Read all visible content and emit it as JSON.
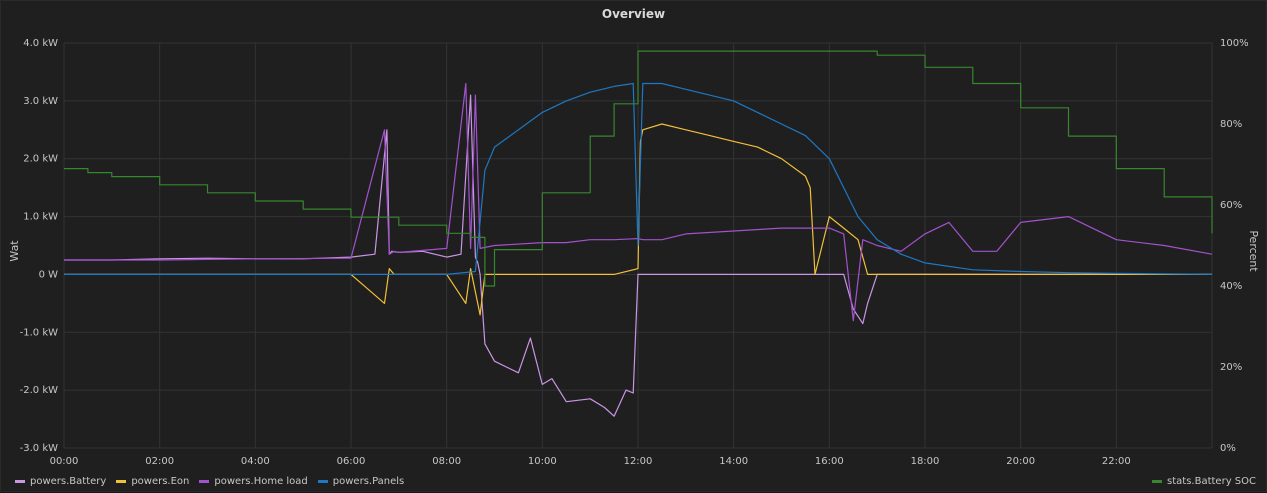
{
  "panel": {
    "title": "Overview"
  },
  "chart_data": {
    "type": "line",
    "title": "Overview",
    "ylabel_left": "Wat",
    "ylabel_right": "Percent",
    "xlim": [
      0,
      24
    ],
    "ylim_left": [
      -3.0,
      4.0
    ],
    "ylim_right": [
      0,
      100
    ],
    "x_ticks": [
      "00:00",
      "02:00",
      "04:00",
      "06:00",
      "08:00",
      "10:00",
      "12:00",
      "14:00",
      "16:00",
      "18:00",
      "20:00",
      "22:00"
    ],
    "y_ticks_left": [
      "4.0 kW",
      "3.0 kW",
      "2.0 kW",
      "1.0 kW",
      "0 W",
      "-1.0 kW",
      "-2.0 kW",
      "-3.0 kW"
    ],
    "y_ticks_right": [
      "100%",
      "80%",
      "60%",
      "40%",
      "20%",
      "0%"
    ],
    "grid": true,
    "series": [
      {
        "name": "powers.Battery",
        "axis": "left",
        "color": "#ca95e5",
        "x": [
          0,
          1,
          2,
          3,
          4,
          5,
          6,
          6.5,
          6.75,
          6.8,
          6.85,
          7,
          7.5,
          8,
          8.3,
          8.5,
          8.6,
          8.65,
          8.7,
          8.8,
          9,
          9.5,
          9.75,
          10,
          10.2,
          10.5,
          11,
          11.3,
          11.5,
          11.75,
          11.9,
          12,
          13,
          14,
          15,
          16,
          16.3,
          16.5,
          16.7,
          16.8,
          17,
          17.5,
          18,
          18.5,
          19,
          20,
          21,
          22,
          23,
          24
        ],
        "y": [
          0.25,
          0.25,
          0.27,
          0.28,
          0.27,
          0.27,
          0.3,
          0.35,
          2.5,
          0.35,
          0.4,
          0.38,
          0.4,
          0.3,
          0.35,
          3.1,
          0.3,
          0.2,
          0,
          -1.2,
          -1.5,
          -1.7,
          -1.1,
          -1.9,
          -1.8,
          -2.2,
          -2.15,
          -2.3,
          -2.45,
          -2.0,
          -2.05,
          0,
          0,
          0,
          0,
          0,
          0,
          -0.6,
          -0.85,
          -0.5,
          0,
          0,
          0,
          0,
          0,
          0,
          0,
          0,
          0,
          0
        ]
      },
      {
        "name": "powers.Eon",
        "axis": "left",
        "color": "#f2c037",
        "x": [
          0,
          2,
          4,
          6,
          6.7,
          6.8,
          6.9,
          7,
          8,
          8.4,
          8.5,
          8.7,
          8.8,
          9,
          10,
          11,
          11.5,
          12,
          12.05,
          12.1,
          12.5,
          13,
          13.5,
          14,
          14.5,
          15,
          15.5,
          15.6,
          15.7,
          16,
          16.3,
          16.6,
          16.8,
          17,
          18,
          20,
          22,
          24
        ],
        "y": [
          0,
          0,
          0,
          0,
          -0.5,
          0.1,
          0,
          0,
          0,
          -0.5,
          0.1,
          -0.7,
          0,
          0,
          0,
          0,
          0,
          0.1,
          2.3,
          2.5,
          2.6,
          2.5,
          2.4,
          2.3,
          2.2,
          2.0,
          1.7,
          1.5,
          0,
          1.0,
          0.8,
          0.6,
          0,
          0,
          0,
          0,
          0,
          0
        ]
      },
      {
        "name": "powers.Home load",
        "axis": "left",
        "color": "#a352cc",
        "x": [
          0,
          2,
          4,
          6,
          6.7,
          6.8,
          6.9,
          7,
          8,
          8.4,
          8.5,
          8.6,
          8.7,
          9,
          10,
          10.5,
          11,
          11.5,
          12,
          12.1,
          12.5,
          13,
          14,
          15,
          16,
          16.3,
          16.5,
          16.7,
          17,
          17.5,
          18,
          18.5,
          19,
          19.5,
          20,
          21,
          22,
          23,
          24
        ],
        "y": [
          0.25,
          0.25,
          0.27,
          0.28,
          2.5,
          0.35,
          0.4,
          0.38,
          0.45,
          3.3,
          0.45,
          3.1,
          0.45,
          0.5,
          0.55,
          0.55,
          0.6,
          0.6,
          0.62,
          0.6,
          0.6,
          0.7,
          0.75,
          0.8,
          0.8,
          0.7,
          -0.8,
          0.6,
          0.5,
          0.4,
          0.7,
          0.9,
          0.4,
          0.4,
          0.9,
          1.0,
          0.6,
          0.5,
          0.35
        ]
      },
      {
        "name": "powers.Panels",
        "axis": "left",
        "color": "#1f78c1",
        "x": [
          0,
          1,
          2,
          3,
          4,
          5,
          6,
          7,
          8,
          8.6,
          8.8,
          9,
          9.5,
          10,
          10.5,
          11,
          11.5,
          11.9,
          12,
          12.1,
          12.5,
          13,
          14,
          15,
          15.5,
          16,
          16.3,
          16.6,
          17,
          17.5,
          18,
          19,
          20,
          21,
          22,
          23,
          24
        ],
        "y": [
          0,
          0,
          0,
          0,
          0,
          0,
          0,
          0,
          0,
          0.05,
          1.8,
          2.2,
          2.5,
          2.8,
          3.0,
          3.15,
          3.25,
          3.3,
          0.5,
          3.3,
          3.3,
          3.2,
          3.0,
          2.6,
          2.4,
          2.0,
          1.5,
          1.0,
          0.6,
          0.35,
          0.2,
          0.08,
          0.05,
          0.03,
          0.02,
          0.01,
          0
        ]
      },
      {
        "name": "stats.Battery SOC",
        "axis": "right",
        "color": "#37872d",
        "x": [
          0,
          0.5,
          1,
          2,
          3,
          4,
          5,
          6,
          7,
          8,
          8.5,
          8.8,
          9,
          10,
          11,
          11.5,
          12,
          13,
          14,
          15,
          16,
          17,
          18,
          19,
          20,
          21,
          22,
          23,
          24
        ],
        "y": [
          69,
          68,
          67,
          65,
          63,
          61,
          59,
          57,
          55,
          53,
          52,
          40,
          49,
          63,
          77,
          85,
          98,
          98,
          98,
          98,
          98,
          97,
          94,
          90,
          84,
          77,
          69,
          62,
          53
        ]
      }
    ]
  }
}
